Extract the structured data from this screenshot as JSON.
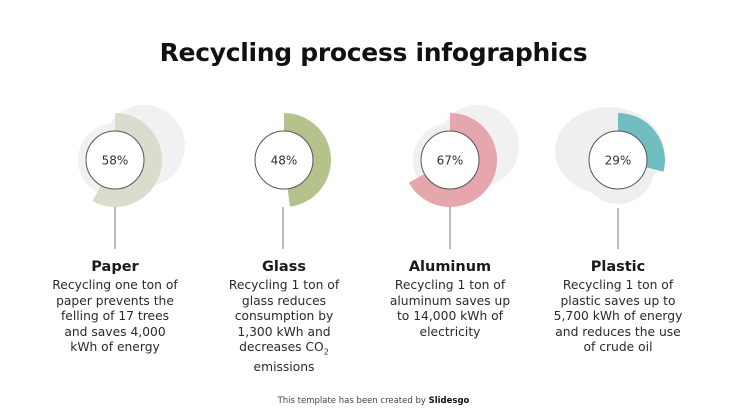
{
  "title": "Recycling process infographics",
  "colors": {
    "background": "#ffffff",
    "blob": "#efefef",
    "center_border": "#555555",
    "connector": "#777777"
  },
  "chart_data": {
    "type": "radial-progress",
    "title": "Recycling process infographics",
    "unit": "%",
    "categories": [
      "Paper",
      "Glass",
      "Aluminum",
      "Plastic"
    ],
    "values": [
      58,
      48,
      67,
      29
    ],
    "colors": [
      "#dcdccd",
      "#b5c28b",
      "#e5a6ac",
      "#71bdbf"
    ],
    "start_angle": "12 o'clock",
    "direction": "clockwise"
  },
  "items": [
    {
      "name": "Paper",
      "percent": 58,
      "percent_label": "58%",
      "color": "#dcdccd",
      "description": "Recycling one ton of\npaper prevents the\nfelling of 17 trees\nand saves 4,000\nkWh of energy"
    },
    {
      "name": "Glass",
      "percent": 48,
      "percent_label": "48%",
      "color": "#b5c28b",
      "description_parts": [
        "Recycling 1 ton of\nglass reduces\nconsumption by\n1,300 kWh and\ndecreases CO",
        "2",
        "\nemissions"
      ]
    },
    {
      "name": "Aluminum",
      "percent": 67,
      "percent_label": "67%",
      "color": "#e5a6ac",
      "description": "Recycling 1 ton of\naluminum saves up\nto 14,000 kWh of\nelectricity"
    },
    {
      "name": "Plastic",
      "percent": 29,
      "percent_label": "29%",
      "color": "#71bdbf",
      "description": "Recycling 1 ton of\nplastic saves up to\n5,700 kWh of energy\nand reduces the use\nof crude oil"
    }
  ],
  "footer": {
    "prefix": "This template has been created by ",
    "brand": "Slidesgo"
  }
}
